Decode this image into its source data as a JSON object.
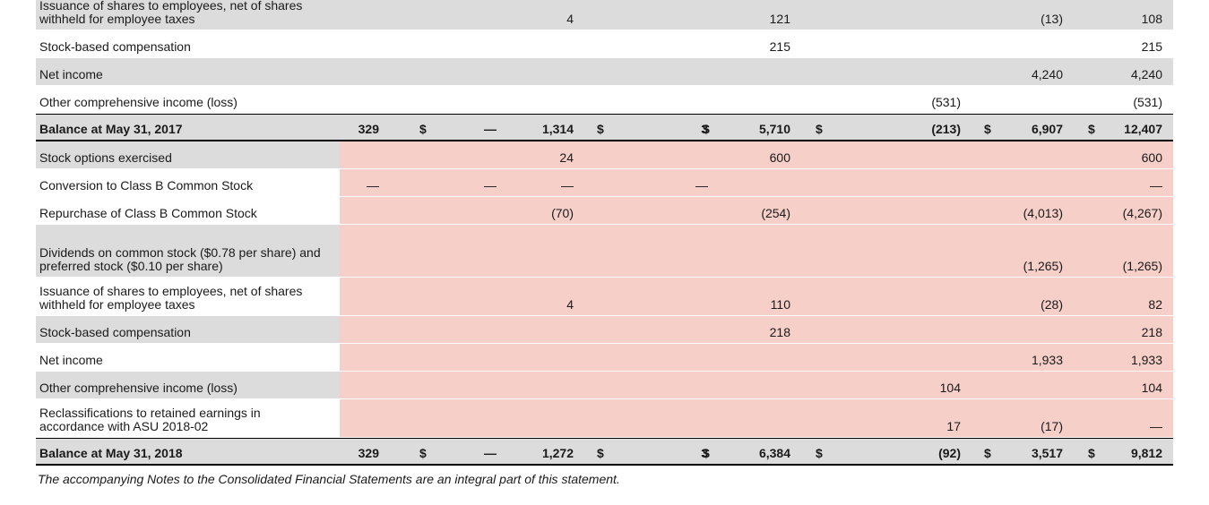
{
  "currency_symbol": "$",
  "rows": [
    {
      "label": "Issuance of shares to employees, net of shares withheld for employee taxes",
      "style": "gray",
      "pink": false,
      "height": 42,
      "values": {
        "c3": "4",
        "c5": "121",
        "c7": "(13)",
        "c8": "108"
      }
    },
    {
      "label": "Stock-based compensation",
      "style": "white",
      "pink": false,
      "height": 30,
      "values": {
        "c5": "215",
        "c8": "215"
      }
    },
    {
      "label": "Net income",
      "style": "gray",
      "pink": false,
      "height": 30,
      "values": {
        "c7": "4,240",
        "c8": "4,240"
      }
    },
    {
      "label": "Other comprehensive income (loss)",
      "style": "white",
      "pink": false,
      "height": 30,
      "values": {
        "c6": "(531)",
        "c8": "(531)"
      }
    },
    {
      "label": "Balance at May 31, 2017",
      "style": "bal",
      "pink": false,
      "height": 28,
      "values": {
        "c1": "329",
        "c2": "—",
        "c3": "1,314",
        "c4": "3",
        "c5": "5,710",
        "c6": "(213)",
        "c7": "6,907",
        "c8": "12,407"
      },
      "signs": [
        "s1",
        "s2",
        "s3",
        "s4",
        "s5",
        "s6"
      ]
    },
    {
      "label": "Stock options exercised",
      "style": "gray",
      "pink": true,
      "height": 30,
      "values": {
        "c3": "24",
        "c5": "600",
        "c8": "600"
      }
    },
    {
      "label": "Conversion to Class B Common Stock",
      "style": "white",
      "pink": true,
      "height": 30,
      "values": {
        "c1": "—",
        "c2": "—",
        "c3": "—",
        "c4": "—",
        "c8": "—"
      }
    },
    {
      "label": "Repurchase of Class B Common Stock",
      "style": "white",
      "pink": true,
      "height": 30,
      "values": {
        "c3": "(70)",
        "c5": "(254)",
        "c7": "(4,013)",
        "c8": "(4,267)"
      }
    },
    {
      "label": "Dividends on common stock ($0.78 per share) and preferred stock ($0.10 per share)",
      "style": "gray",
      "pink": true,
      "height": 58,
      "values": {
        "c7": "(1,265)",
        "c8": "(1,265)"
      }
    },
    {
      "label": "Issuance of shares to employees, net of shares withheld for employee taxes",
      "style": "white",
      "pink": true,
      "height": 42,
      "values": {
        "c3": "4",
        "c5": "110",
        "c7": "(28)",
        "c8": "82"
      }
    },
    {
      "label": "Stock-based compensation",
      "style": "gray",
      "pink": true,
      "height": 30,
      "values": {
        "c5": "218",
        "c8": "218"
      }
    },
    {
      "label": "Net income",
      "style": "white",
      "pink": true,
      "height": 30,
      "values": {
        "c7": "1,933",
        "c8": "1,933"
      }
    },
    {
      "label": "Other comprehensive income (loss)",
      "style": "gray",
      "pink": true,
      "height": 30,
      "values": {
        "c6": "104",
        "c8": "104"
      }
    },
    {
      "label": "Reclassifications to retained earnings in accordance with ASU 2018-02",
      "style": "white",
      "pink": true,
      "height": 42,
      "values": {
        "c6": "17",
        "c7": "(17)",
        "c8": "—"
      }
    },
    {
      "label": "Balance at May 31, 2018",
      "style": "bal",
      "pink": false,
      "height": 28,
      "values": {
        "c1": "329",
        "c2": "—",
        "c3": "1,272",
        "c4": "3",
        "c5": "6,384",
        "c6": "(92)",
        "c7": "3,517",
        "c8": "9,812"
      },
      "signs": [
        "s1",
        "s2",
        "s3",
        "s4",
        "s5",
        "s6"
      ]
    }
  ],
  "footnote": "The accompanying Notes to the Consolidated Financial Statements are an integral part of this statement."
}
